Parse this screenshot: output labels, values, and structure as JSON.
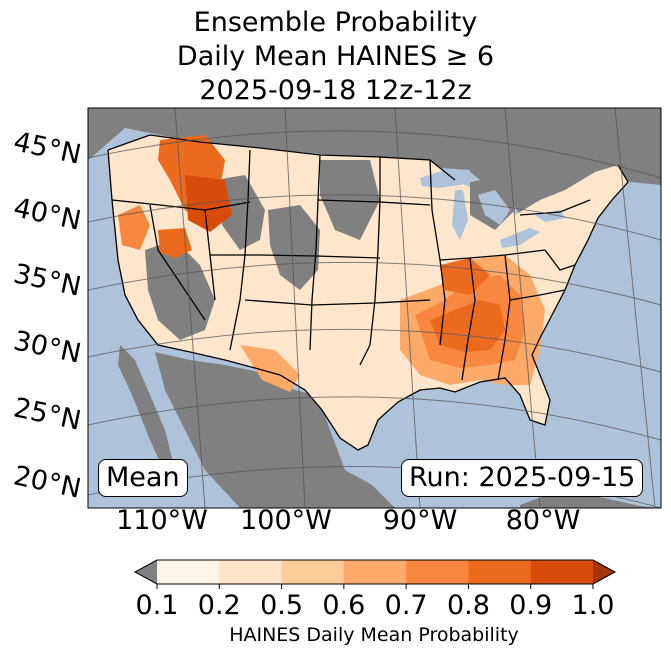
{
  "title": {
    "line1": "Ensemble Probability",
    "line2": "Daily Mean HAINES ≥ 6",
    "line3": "2025-09-18 12z-12z"
  },
  "map": {
    "lat_labels": [
      "45°N",
      "40°N",
      "35°N",
      "30°N",
      "25°N",
      "20°N"
    ],
    "lon_labels": [
      "110°W",
      "100°W",
      "90°W",
      "80°W"
    ],
    "stat_label": "Mean",
    "run_label": "Run: 2025-09-15",
    "colors": {
      "ocean": "#aec3d9",
      "lakes": "#aec3d9",
      "nodata": "#808080",
      "borders": "#000000",
      "graticule": "#555555"
    },
    "probability_regions": [
      {
        "region": "Pacific Northwest / Idaho",
        "level": "0.8-0.9"
      },
      {
        "region": "Northern California / Nevada",
        "level": "0.7-0.8"
      },
      {
        "region": "Lower Mississippi Valley / Tennessee",
        "level": "0.7-0.9"
      },
      {
        "region": "Southeast / Gulf Coast",
        "level": "0.5-0.7"
      },
      {
        "region": "Southern Plains",
        "level": "0.1-0.5"
      }
    ]
  },
  "colorbar": {
    "ticks": [
      "0.1",
      "0.2",
      "0.5",
      "0.6",
      "0.7",
      "0.8",
      "0.9",
      "1.0"
    ],
    "colors": [
      "#fff3e6",
      "#fee3c8",
      "#fdcc9b",
      "#fcaa6a",
      "#f8873f",
      "#ec6a1e",
      "#d84c0b"
    ],
    "under_color": "#808080",
    "over_color": "#a33604",
    "label": "HAINES Daily Mean Probability"
  }
}
